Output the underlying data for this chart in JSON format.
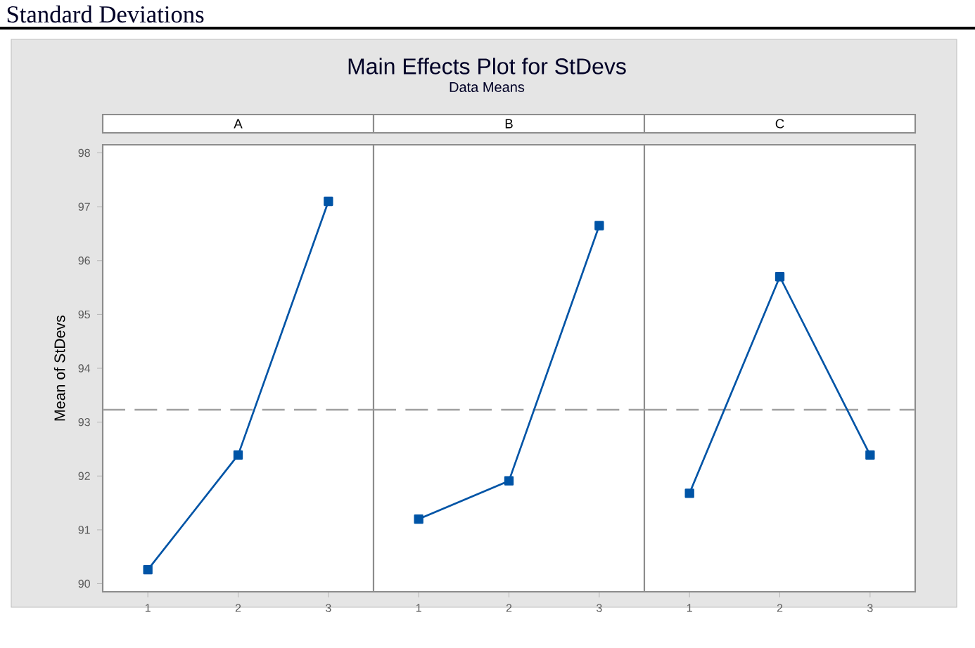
{
  "chart_data": [
    {
      "type": "line",
      "title": "A",
      "ylabel": "Mean of StDevs",
      "annotations": [
        "Main Effects Plot for StDevs",
        "Data Means",
        "Standard Deviations"
      ],
      "categories": [
        "1",
        "2",
        "3"
      ],
      "series": [
        {
          "color": "#0054a6",
          "values": [
            90.26,
            92.39,
            97.1
          ]
        }
      ],
      "ylim": [
        89.85,
        98.15
      ],
      "yticks": [
        90,
        91,
        92,
        93,
        94,
        95,
        96,
        97,
        98
      ],
      "marker": "square",
      "line_style": "solid",
      "ref_lines": [
        {
          "axis": "y",
          "value": 93.23,
          "color": "#a0a0a0",
          "line_style": "dashed"
        }
      ]
    },
    {
      "type": "line",
      "title": "B",
      "categories": [
        "1",
        "2",
        "3"
      ],
      "series": [
        {
          "color": "#0054a6",
          "values": [
            91.2,
            91.91,
            96.65
          ]
        }
      ],
      "ylim": [
        89.85,
        98.15
      ],
      "tick_labels": "x",
      "marker": "square",
      "line_style": "solid",
      "ref_lines": [
        {
          "axis": "y",
          "value": 93.23,
          "color": "#a0a0a0",
          "line_style": "dashed"
        }
      ]
    },
    {
      "type": "line",
      "title": "C",
      "categories": [
        "1",
        "2",
        "3"
      ],
      "series": [
        {
          "color": "#0054a6",
          "values": [
            91.68,
            95.7,
            92.39
          ]
        }
      ],
      "ylim": [
        89.85,
        98.15
      ],
      "tick_labels": "x",
      "marker": "square",
      "line_style": "solid",
      "ref_lines": [
        {
          "axis": "y",
          "value": 93.23,
          "color": "#a0a0a0",
          "line_style": "dashed"
        }
      ]
    }
  ]
}
